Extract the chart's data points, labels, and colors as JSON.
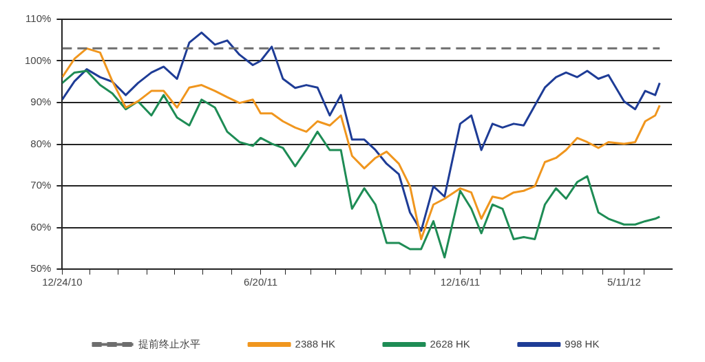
{
  "chart_data": {
    "type": "line",
    "x": [
      "2010-12-24",
      "2011-01-04",
      "2011-01-15",
      "2011-01-27",
      "2011-02-07",
      "2011-02-19",
      "2011-03-02",
      "2011-03-14",
      "2011-03-25",
      "2011-04-06",
      "2011-04-17",
      "2011-04-28",
      "2011-05-10",
      "2011-05-21",
      "2011-06-01",
      "2011-06-13",
      "2011-06-20",
      "2011-06-30",
      "2011-07-10",
      "2011-07-21",
      "2011-07-31",
      "2011-08-10",
      "2011-08-21",
      "2011-08-31",
      "2011-09-10",
      "2011-09-21",
      "2011-10-01",
      "2011-10-11",
      "2011-10-22",
      "2011-11-01",
      "2011-11-11",
      "2011-11-22",
      "2011-12-02",
      "2011-12-16",
      "2011-12-26",
      "2012-01-04",
      "2012-01-14",
      "2012-01-23",
      "2012-02-02",
      "2012-02-11",
      "2012-02-21",
      "2012-03-01",
      "2012-03-11",
      "2012-03-20",
      "2012-03-30",
      "2012-04-08",
      "2012-04-18",
      "2012-04-27",
      "2012-05-11",
      "2012-05-21",
      "2012-05-30",
      "2012-06-08",
      "2012-06-12"
    ],
    "series": [
      {
        "name": "2388 HK",
        "color": "#f0961e",
        "values": [
          96.1,
          100.5,
          103,
          102,
          95.1,
          88.8,
          90.3,
          92.8,
          92.8,
          88.8,
          93.6,
          94.2,
          92.8,
          91.3,
          89.9,
          90.7,
          87.4,
          87.4,
          85.5,
          84,
          83,
          85.5,
          84.5,
          86.9,
          77.2,
          74.2,
          76.7,
          78.2,
          75.3,
          69.9,
          57.2,
          65.5,
          66.9,
          69.4,
          68.4,
          62.1,
          67.4,
          66.9,
          68.4,
          68.8,
          69.9,
          75.7,
          76.7,
          78.6,
          81.5,
          80.5,
          79.1,
          80.5,
          80.1,
          80.5,
          85.5,
          86.9,
          89.3
        ]
      },
      {
        "name": "2628 HK",
        "color": "#1e8c55",
        "values": [
          94.7,
          97.2,
          97.6,
          94.2,
          92.2,
          88.4,
          90.3,
          86.9,
          91.8,
          86.4,
          84.5,
          90.7,
          88.8,
          83,
          80.5,
          79.6,
          81.5,
          80.1,
          79.1,
          74.7,
          78.6,
          83,
          78.6,
          78.6,
          64.5,
          69.4,
          65.5,
          56.3,
          56.3,
          54.8,
          54.8,
          61.5,
          52.8,
          68.8,
          64.5,
          58.6,
          65.5,
          64.5,
          57.2,
          57.7,
          57.2,
          65.5,
          69.4,
          66.9,
          70.9,
          72.3,
          63.6,
          62.1,
          60.7,
          60.7,
          61.5,
          62.1,
          62.6
        ]
      },
      {
        "name": "998 HK",
        "color": "#1e3c96",
        "values": [
          90.7,
          95.1,
          98,
          96.1,
          95,
          91.8,
          94.7,
          97.2,
          98.6,
          95.7,
          104.4,
          106.8,
          103.9,
          104.9,
          101.5,
          99,
          100,
          103.4,
          95.7,
          93.5,
          94.2,
          93.6,
          86.9,
          91.8,
          81.1,
          81.1,
          78.6,
          75.3,
          72.8,
          63.6,
          59.2,
          69.9,
          67.4,
          84.9,
          86.9,
          78.6,
          84.9,
          84,
          84.9,
          84.5,
          89.3,
          93.6,
          96.1,
          97.2,
          96.1,
          97.6,
          95.7,
          96.6,
          90.3,
          88.4,
          92.8,
          91.8,
          94.7
        ]
      }
    ],
    "ref_lines": [
      {
        "axis": "y",
        "value": 103,
        "label": "提前终止水平",
        "color": "#6e6e6e",
        "line_style": "dashed"
      }
    ],
    "xlim": [
      "2010-12-24",
      "2012-06-23"
    ],
    "xticks": [
      {
        "value": "2010-12-24",
        "label": "12/24/10"
      },
      {
        "value": "2011-01-18",
        "label": null
      },
      {
        "value": "2011-02-12",
        "label": null
      },
      {
        "value": "2011-03-10",
        "label": null
      },
      {
        "value": "2011-04-04",
        "label": null
      },
      {
        "value": "2011-04-29",
        "label": null
      },
      {
        "value": "2011-05-25",
        "label": null
      },
      {
        "value": "2011-06-20",
        "label": "6/20/11"
      },
      {
        "value": "2011-07-12",
        "label": null
      },
      {
        "value": "2011-08-04",
        "label": null
      },
      {
        "value": "2011-08-26",
        "label": null
      },
      {
        "value": "2011-09-18",
        "label": null
      },
      {
        "value": "2011-10-10",
        "label": null
      },
      {
        "value": "2011-11-01",
        "label": null
      },
      {
        "value": "2011-11-23",
        "label": null
      },
      {
        "value": "2011-12-16",
        "label": "12/16/11"
      },
      {
        "value": "2012-01-03",
        "label": null
      },
      {
        "value": "2012-01-21",
        "label": null
      },
      {
        "value": "2012-02-09",
        "label": null
      },
      {
        "value": "2012-02-27",
        "label": null
      },
      {
        "value": "2012-03-17",
        "label": null
      },
      {
        "value": "2012-04-04",
        "label": null
      },
      {
        "value": "2012-04-22",
        "label": null
      },
      {
        "value": "2012-05-11",
        "label": "5/11/12"
      },
      {
        "value": "2012-05-29",
        "label": null
      }
    ],
    "ylim": [
      50,
      110
    ],
    "yticks": [
      {
        "value": 50,
        "label": "50%"
      },
      {
        "value": 60,
        "label": "60%"
      },
      {
        "value": 70,
        "label": "70%"
      },
      {
        "value": 80,
        "label": "80%"
      },
      {
        "value": 90,
        "label": "90%"
      },
      {
        "value": 100,
        "label": "100%"
      },
      {
        "value": 110,
        "label": "110%"
      }
    ],
    "grid": "y",
    "legend": "bottom",
    "marker": "none",
    "line_style": "solid"
  }
}
